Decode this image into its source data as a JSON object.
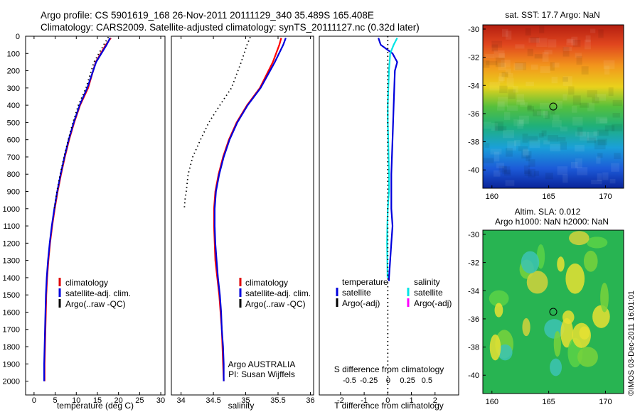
{
  "header": {
    "line1": "Argo profile: CS 5901619_168 26-Nov-2011 20111129_340 35.489S 165.408E",
    "line2": "Climatology: CARS2009. Satellite-adjusted climatology: synTS_20111127.nc (0.32d later)"
  },
  "colors": {
    "climatology": "#ff0000",
    "satellite": "#0000dd",
    "argo": "#000000",
    "satellite_s": "#00e5e5",
    "argo_s": "#ff00ff"
  },
  "depth_ticks": [
    "0",
    "100",
    "200",
    "300",
    "400",
    "500",
    "600",
    "700",
    "800",
    "900",
    "1000",
    "1100",
    "1200",
    "1300",
    "1400",
    "1500",
    "1600",
    "1700",
    "1800",
    "1900",
    "2000"
  ],
  "depth_values": [
    0,
    100,
    200,
    300,
    400,
    500,
    600,
    700,
    800,
    900,
    1000,
    1100,
    1200,
    1300,
    1400,
    1500,
    1600,
    1700,
    1800,
    1900,
    2000
  ],
  "chart_data": [
    {
      "type": "line",
      "xlabel": "temperature (deg C)",
      "ylabel": "",
      "xlim": [
        -2,
        31
      ],
      "ylim": [
        2080,
        0
      ],
      "x_ticks": [
        "0",
        "5",
        "10",
        "15",
        "20",
        "25",
        "30"
      ],
      "x_tick_values": [
        0,
        5,
        10,
        15,
        20,
        25,
        30
      ],
      "legend": [
        "climatology",
        "satellite-adj. clim.",
        "Argo(..raw -QC)"
      ],
      "legend_position": "lower-left",
      "series": [
        {
          "name": "climatology",
          "style": "solid",
          "color": "climatology",
          "x": [
            18.2,
            17.0,
            14.6,
            12.8,
            10.9,
            9.5,
            8.3,
            7.3,
            6.4,
            5.6,
            4.9,
            4.3,
            3.8,
            3.4,
            3.1,
            2.9,
            2.8,
            2.7,
            2.6,
            2.5,
            2.5
          ],
          "y": [
            10,
            50,
            150,
            300,
            400,
            500,
            600,
            700,
            800,
            900,
            1000,
            1100,
            1200,
            1300,
            1400,
            1500,
            1600,
            1700,
            1800,
            1900,
            2000
          ]
        },
        {
          "name": "satellite-adj. clim.",
          "style": "solid",
          "color": "satellite",
          "x": [
            18.0,
            17.2,
            14.7,
            12.6,
            10.8,
            9.4,
            8.2,
            7.2,
            6.3,
            5.5,
            4.8,
            4.2,
            3.7,
            3.3,
            3.0,
            2.8,
            2.7,
            2.6,
            2.5,
            2.4,
            2.4
          ],
          "y": [
            10,
            50,
            150,
            300,
            400,
            500,
            600,
            700,
            800,
            900,
            1000,
            1100,
            1200,
            1300,
            1400,
            1500,
            1600,
            1700,
            1800,
            1900,
            2000
          ]
        },
        {
          "name": "Argo(..raw -QC)",
          "style": "dotted",
          "color": "argo",
          "x": [
            17.6,
            16.5,
            14.2,
            12.3,
            10.5,
            9.2,
            8.1,
            7.1,
            6.2,
            5.4,
            4.8
          ],
          "y": [
            5,
            50,
            150,
            300,
            400,
            500,
            600,
            700,
            800,
            900,
            1000
          ]
        }
      ]
    },
    {
      "type": "line",
      "xlabel": "salinity",
      "ylabel": "",
      "xlim": [
        33.85,
        36.05
      ],
      "ylim": [
        2080,
        0
      ],
      "x_ticks": [
        "34",
        "34.5",
        "35",
        "35.5",
        "36"
      ],
      "x_tick_values": [
        34,
        34.5,
        35,
        35.5,
        36
      ],
      "legend": [
        "climatology",
        "satellite-adj. clim.",
        "Argo(..raw -QC)"
      ],
      "legend_position": "lower-right",
      "annotations": [
        "Argo AUSTRALIA",
        "PI: Susan Wijffels"
      ],
      "series": [
        {
          "name": "climatology",
          "style": "solid",
          "color": "climatology",
          "x": [
            35.55,
            35.52,
            35.42,
            35.22,
            35.02,
            34.86,
            34.74,
            34.65,
            34.58,
            34.53,
            34.51,
            34.51,
            34.52,
            34.53,
            34.56,
            34.59,
            34.61,
            34.63,
            34.64,
            34.65,
            34.66
          ],
          "y": [
            10,
            50,
            150,
            300,
            400,
            500,
            600,
            700,
            800,
            900,
            1000,
            1100,
            1200,
            1300,
            1400,
            1500,
            1600,
            1700,
            1800,
            1900,
            2000
          ]
        },
        {
          "name": "satellite-adj. clim.",
          "style": "solid",
          "color": "satellite",
          "x": [
            35.62,
            35.58,
            35.45,
            35.23,
            35.03,
            34.87,
            34.75,
            34.66,
            34.59,
            34.54,
            34.52,
            34.52,
            34.53,
            34.55,
            34.57,
            34.6,
            34.62,
            34.63,
            34.65,
            34.66,
            34.66
          ],
          "y": [
            10,
            50,
            150,
            300,
            400,
            500,
            600,
            700,
            800,
            900,
            1000,
            1100,
            1200,
            1300,
            1400,
            1500,
            1600,
            1700,
            1800,
            1900,
            2000
          ]
        },
        {
          "name": "Argo(..raw -QC)",
          "style": "dotted",
          "color": "argo",
          "x": [
            35.07,
            35.02,
            34.93,
            34.78,
            34.6,
            34.43,
            34.3,
            34.18,
            34.11,
            34.08,
            34.06,
            34.05
          ],
          "y": [
            5,
            50,
            150,
            300,
            400,
            500,
            600,
            700,
            800,
            900,
            950,
            1000
          ]
        }
      ]
    },
    {
      "type": "line",
      "xlabel": "T difference from climatology",
      "xlabel2": "S difference from climatology",
      "xlim": [
        -2.9,
        3.0
      ],
      "ylim": [
        2080,
        0
      ],
      "x_ticks": [
        "-2",
        "-1",
        "0",
        "1",
        "2"
      ],
      "x_tick_values": [
        -2,
        -1,
        0,
        1,
        2
      ],
      "x2_ticks": [
        "-0.5",
        "-0.25",
        "0",
        "0.25",
        "0.5"
      ],
      "x2_tick_values": [
        -0.5,
        -0.25,
        0,
        0.25,
        0.5
      ],
      "legend_left": {
        "title": "temperature",
        "items": [
          "satellite",
          "Argo(-adj)"
        ]
      },
      "legend_right": {
        "title": "salinity",
        "items": [
          "satellite",
          "Argo(-adj)"
        ]
      },
      "series": [
        {
          "name": "satellite T",
          "style": "solid",
          "color": "satellite",
          "x": [
            -0.4,
            -0.3,
            0.2,
            0.4,
            0.3,
            0.25,
            0.2,
            0.15,
            0.15,
            0.2,
            0.15,
            0.1,
            0.05,
            0.05,
            0.05
          ],
          "y": [
            10,
            50,
            100,
            150,
            200,
            400,
            600,
            800,
            1000,
            1100,
            1200,
            1300,
            1400,
            1410,
            1420
          ]
        },
        {
          "name": "satellite S",
          "style": "solid",
          "color": "satellite_s",
          "x": [
            0.4,
            0.25,
            0.1,
            0.05,
            0.0,
            0.0,
            0.02,
            0.05,
            0.05,
            0.0,
            -0.02,
            -0.03,
            -0.02,
            -0.01
          ],
          "y": [
            10,
            50,
            100,
            200,
            400,
            500,
            600,
            800,
            900,
            1000,
            1100,
            1200,
            1300,
            1400
          ]
        },
        {
          "name": "zero",
          "style": "dotted",
          "color": "argo",
          "x": [
            0,
            0
          ],
          "y": [
            0,
            2080
          ]
        }
      ]
    }
  ],
  "maps": [
    {
      "title": "sat. SST: 17.7 Argo: NaN",
      "x_ticks": [
        "160",
        "165",
        "170"
      ],
      "y_ticks": [
        "-30",
        "-32",
        "-34",
        "-36",
        "-38",
        "-40"
      ],
      "lon_range": [
        159.2,
        171.6
      ],
      "lat_range": [
        -41.3,
        -29.7
      ],
      "marker": {
        "lon": 165.4,
        "lat": -35.5
      }
    },
    {
      "title_line1": "Altim. SLA: 0.012",
      "title_line2": "Argo h1000: NaN h2000: NaN",
      "x_ticks": [
        "160",
        "165",
        "170"
      ],
      "y_ticks": [
        "-30",
        "-32",
        "-34",
        "-36",
        "-38",
        "-40"
      ],
      "lon_range": [
        159.2,
        171.6
      ],
      "lat_range": [
        -41.3,
        -29.7
      ],
      "marker": {
        "lon": 165.4,
        "lat": -35.5
      }
    }
  ],
  "credit": "©IMOS 03-Dec-2011 16:01:01"
}
